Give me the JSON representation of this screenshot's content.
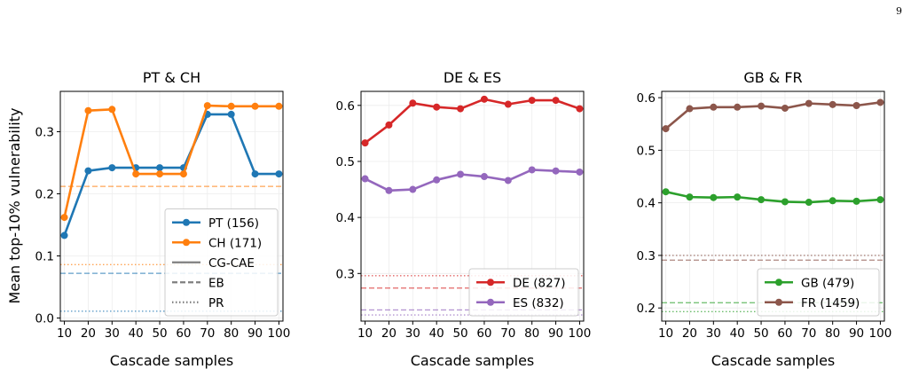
{
  "page_number": "9",
  "figure": {
    "ylabel": "Mean top-10% vulnerability",
    "xlabel": "Cascade samples",
    "colors": {
      "PT": "#1f77b4",
      "CH": "#ff7f0e",
      "DE": "#d62728",
      "ES": "#9467bd",
      "GB": "#2ca02c",
      "FR": "#8c564b",
      "gray": "#7f7f7f"
    }
  },
  "chart_data": [
    {
      "type": "line",
      "title": "PT & CH",
      "x": [
        10,
        20,
        30,
        40,
        50,
        60,
        70,
        80,
        90,
        100
      ],
      "xticks": [
        "10",
        "20",
        "30",
        "40",
        "50",
        "60",
        "70",
        "80",
        "90",
        "100"
      ],
      "ylim": [
        -0.005,
        0.365
      ],
      "yticks": [
        0.0,
        0.1,
        0.2,
        0.3
      ],
      "ytick_labels": [
        "0.0",
        "0.1",
        "0.2",
        "0.3"
      ],
      "grid": true,
      "series": [
        {
          "name": "PT (156)",
          "color": "#1f77b4",
          "values": [
            0.133,
            0.237,
            0.242,
            0.242,
            0.242,
            0.242,
            0.328,
            0.328,
            0.232,
            0.232
          ]
        },
        {
          "name": "CH (171)",
          "color": "#ff7f0e",
          "values": [
            0.162,
            0.334,
            0.336,
            0.232,
            0.232,
            0.232,
            0.342,
            0.341,
            0.341,
            0.341
          ]
        }
      ],
      "reference_lines": [
        {
          "color": "#ff7f0e",
          "style": "dashed",
          "y": 0.212
        },
        {
          "color": "#ff7f0e",
          "style": "dotted",
          "y": 0.086
        },
        {
          "color": "#1f77b4",
          "style": "dashed",
          "y": 0.072
        },
        {
          "color": "#1f77b4",
          "style": "dotted",
          "y": 0.011
        }
      ],
      "legend": {
        "position": "lower-right",
        "entries": [
          {
            "label": "PT (156)",
            "kind": "marker-line",
            "color": "#1f77b4"
          },
          {
            "label": "CH (171)",
            "kind": "marker-line",
            "color": "#ff7f0e"
          },
          {
            "label": "CG-CAE",
            "kind": "solid",
            "color": "#7f7f7f"
          },
          {
            "label": "EB",
            "kind": "dashed",
            "color": "#7f7f7f"
          },
          {
            "label": "PR",
            "kind": "dotted",
            "color": "#7f7f7f"
          }
        ]
      }
    },
    {
      "type": "line",
      "title": "DE & ES",
      "x": [
        10,
        20,
        30,
        40,
        50,
        60,
        70,
        80,
        90,
        100
      ],
      "xticks": [
        "10",
        "20",
        "30",
        "40",
        "50",
        "60",
        "70",
        "80",
        "90",
        "100"
      ],
      "ylim": [
        0.215,
        0.625
      ],
      "yticks": [
        0.3,
        0.4,
        0.5,
        0.6
      ],
      "ytick_labels": [
        "0.3",
        "0.4",
        "0.5",
        "0.6"
      ],
      "grid": true,
      "series": [
        {
          "name": "DE (827)",
          "color": "#d62728",
          "values": [
            0.533,
            0.565,
            0.604,
            0.597,
            0.594,
            0.611,
            0.602,
            0.609,
            0.609,
            0.594
          ]
        },
        {
          "name": "ES (832)",
          "color": "#9467bd",
          "values": [
            0.469,
            0.448,
            0.45,
            0.467,
            0.477,
            0.473,
            0.466,
            0.485,
            0.483,
            0.481
          ]
        }
      ],
      "reference_lines": [
        {
          "color": "#d62728",
          "style": "dotted",
          "y": 0.296
        },
        {
          "color": "#d62728",
          "style": "dashed",
          "y": 0.274
        },
        {
          "color": "#9467bd",
          "style": "dashed",
          "y": 0.235
        },
        {
          "color": "#9467bd",
          "style": "dotted",
          "y": 0.226
        }
      ],
      "legend": {
        "position": "lower-right",
        "entries": [
          {
            "label": "DE (827)",
            "kind": "marker-line",
            "color": "#d62728"
          },
          {
            "label": "ES (832)",
            "kind": "marker-line",
            "color": "#9467bd"
          }
        ]
      }
    },
    {
      "type": "line",
      "title": "GB & FR",
      "x": [
        10,
        20,
        30,
        40,
        50,
        60,
        70,
        80,
        90,
        100
      ],
      "xticks": [
        "10",
        "20",
        "30",
        "40",
        "50",
        "60",
        "70",
        "80",
        "90",
        "100"
      ],
      "ylim": [
        0.175,
        0.612
      ],
      "yticks": [
        0.2,
        0.3,
        0.4,
        0.5,
        0.6
      ],
      "ytick_labels": [
        "0.2",
        "0.3",
        "0.4",
        "0.5",
        "0.6"
      ],
      "grid": true,
      "series": [
        {
          "name": "GB (479)",
          "color": "#2ca02c",
          "values": [
            0.421,
            0.411,
            0.41,
            0.411,
            0.406,
            0.402,
            0.401,
            0.404,
            0.403,
            0.406
          ]
        },
        {
          "name": "FR (1459)",
          "color": "#8c564b",
          "values": [
            0.541,
            0.579,
            0.582,
            0.582,
            0.584,
            0.58,
            0.589,
            0.587,
            0.585,
            0.591
          ]
        }
      ],
      "reference_lines": [
        {
          "color": "#8c564b",
          "style": "dotted",
          "y": 0.3
        },
        {
          "color": "#8c564b",
          "style": "dashed",
          "y": 0.291
        },
        {
          "color": "#2ca02c",
          "style": "dashed",
          "y": 0.21
        },
        {
          "color": "#2ca02c",
          "style": "dotted",
          "y": 0.193
        }
      ],
      "legend": {
        "position": "lower-right",
        "entries": [
          {
            "label": "GB (479)",
            "kind": "marker-line",
            "color": "#2ca02c"
          },
          {
            "label": "FR (1459)",
            "kind": "marker-line",
            "color": "#8c564b"
          }
        ]
      }
    }
  ]
}
